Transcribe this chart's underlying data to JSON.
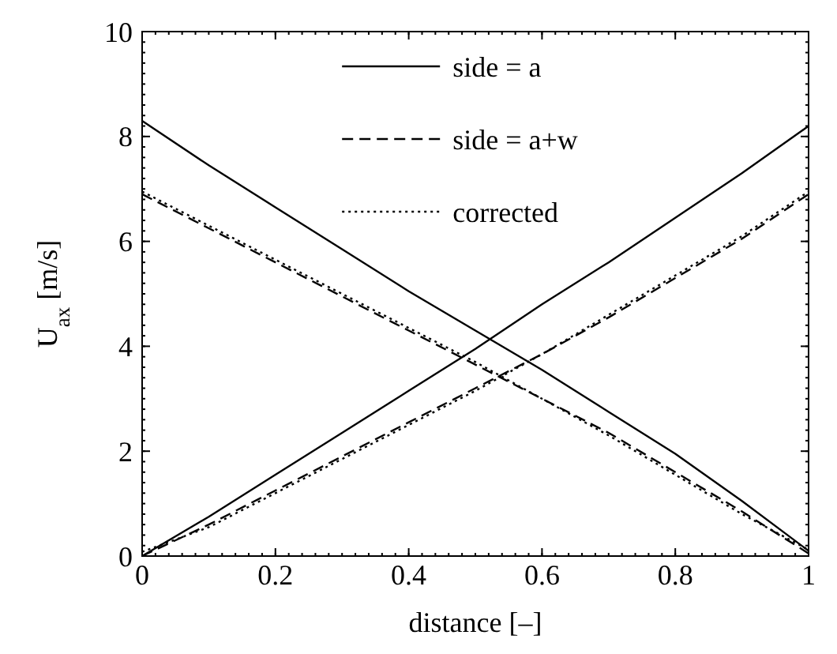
{
  "chart_data": {
    "type": "line",
    "xlabel": "distance [–]",
    "ylabel": "U$_{ax}$ [m/s]",
    "xlim": [
      0,
      1
    ],
    "ylim": [
      0,
      10
    ],
    "xticks": [
      0,
      0.2,
      0.4,
      0.6,
      0.8,
      1
    ],
    "yticks": [
      0,
      2,
      4,
      6,
      8,
      10
    ],
    "grid": false,
    "legend": "top",
    "x": [
      0,
      0.1,
      0.2,
      0.3,
      0.4,
      0.5,
      0.6,
      0.7,
      0.8,
      0.9,
      1
    ],
    "series": [
      {
        "name": "side = a",
        "color": "#000000",
        "line_style": "solid",
        "values": [
          8.3,
          7.45,
          6.65,
          5.85,
          5.05,
          4.3,
          3.55,
          2.75,
          1.95,
          1.05,
          0.1
        ]
      },
      {
        "color": "#000000",
        "line_style": "solid",
        "values": [
          0,
          0.75,
          1.55,
          2.35,
          3.15,
          3.95,
          4.8,
          5.6,
          6.45,
          7.3,
          8.2
        ]
      },
      {
        "name": "side = a+w",
        "color": "#000000",
        "line_style": "dashed",
        "values": [
          6.9,
          6.25,
          5.6,
          4.95,
          4.3,
          3.65,
          3.0,
          2.35,
          1.6,
          0.85,
          0.05
        ]
      },
      {
        "color": "#000000",
        "line_style": "dashed",
        "values": [
          0,
          0.6,
          1.25,
          1.9,
          2.55,
          3.2,
          3.85,
          4.55,
          5.3,
          6.05,
          6.9
        ]
      },
      {
        "name": "corrected",
        "color": "#000000",
        "line_style": "dotted",
        "values": [
          6.95,
          6.3,
          5.65,
          5.0,
          4.35,
          3.7,
          3.0,
          2.3,
          1.55,
          0.8,
          0.12
        ]
      },
      {
        "color": "#000000",
        "line_style": "dotted",
        "values": [
          0.08,
          0.55,
          1.2,
          1.85,
          2.5,
          3.15,
          3.85,
          4.6,
          5.35,
          6.1,
          6.95
        ]
      }
    ]
  }
}
